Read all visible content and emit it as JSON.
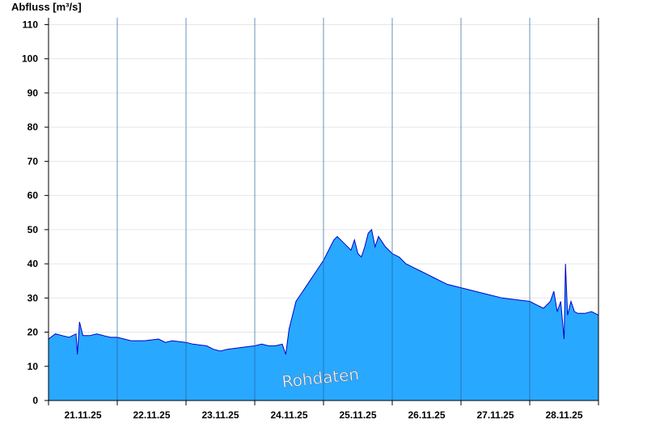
{
  "chart_data": {
    "type": "area",
    "ylabel": "Abfluss [m³/s]",
    "ylim": [
      0,
      112
    ],
    "yticks": [
      0,
      10,
      20,
      30,
      40,
      50,
      60,
      70,
      80,
      90,
      100,
      110
    ],
    "xlim": [
      0,
      8
    ],
    "x_tick_labels": [
      "21.11.25",
      "22.11.25",
      "23.11.25",
      "24.11.25",
      "25.11.25",
      "26.11.25",
      "27.11.25",
      "28.11.25"
    ],
    "x_tick_positions": [
      0.5,
      1.5,
      2.5,
      3.5,
      4.5,
      5.5,
      6.5,
      7.5
    ],
    "day_separators": [
      1,
      2,
      3,
      4,
      5,
      6,
      7
    ],
    "grid": true,
    "fill_color": "#29a8ff",
    "line_color": "#0000cc",
    "watermark": "Rohdaten",
    "series": [
      {
        "x": [
          0,
          0.1,
          0.2,
          0.3,
          0.4,
          0.42,
          0.45,
          0.5,
          0.6,
          0.7,
          0.8,
          0.9,
          1.0,
          1.1,
          1.2,
          1.4,
          1.6,
          1.7,
          1.8,
          2.0,
          2.1,
          2.3,
          2.4,
          2.5,
          2.6,
          2.8,
          3.0,
          3.1,
          3.2,
          3.3,
          3.4,
          3.45,
          3.5,
          3.6,
          3.7,
          3.8,
          3.9,
          4.0,
          4.1,
          4.15,
          4.2,
          4.3,
          4.4,
          4.45,
          4.5,
          4.55,
          4.6,
          4.65,
          4.7,
          4.75,
          4.8,
          4.9,
          5.0,
          5.1,
          5.2,
          5.3,
          5.4,
          5.5,
          5.6,
          5.7,
          5.8,
          5.9,
          6.0,
          6.2,
          6.4,
          6.6,
          6.8,
          7.0,
          7.1,
          7.2,
          7.3,
          7.35,
          7.4,
          7.45,
          7.5,
          7.52,
          7.55,
          7.6,
          7.65,
          7.7,
          7.8,
          7.9,
          8.0
        ],
        "y": [
          18,
          19.5,
          19,
          18.5,
          19.5,
          13.5,
          23,
          19,
          19,
          19.5,
          19,
          18.5,
          18.5,
          18,
          17.5,
          17.5,
          18,
          17,
          17.5,
          17,
          16.5,
          16,
          15,
          14.5,
          15,
          15.5,
          16,
          16.5,
          16,
          16,
          16.5,
          13.5,
          21,
          29,
          32,
          35,
          38,
          41,
          45,
          47,
          48,
          46,
          44,
          47,
          43,
          42,
          45,
          49,
          50,
          45,
          48,
          45,
          43,
          42,
          40,
          39,
          38,
          37,
          36,
          35,
          34,
          33.5,
          33,
          32,
          31,
          30,
          29.5,
          29,
          28,
          27,
          29,
          32,
          26,
          29,
          18,
          40,
          25,
          29,
          26,
          25.5,
          25.5,
          26,
          25
        ]
      }
    ]
  }
}
